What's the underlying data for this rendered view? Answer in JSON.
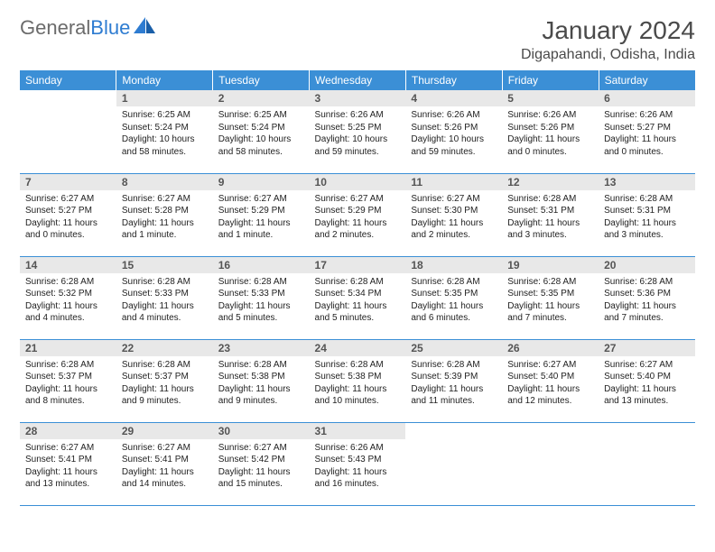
{
  "logo": {
    "text_gray": "General",
    "text_blue": "Blue"
  },
  "title": "January 2024",
  "location": "Digapahandi, Odisha, India",
  "colors": {
    "header_bg": "#3b8fd6",
    "header_fg": "#ffffff",
    "daynum_bg": "#e8e8e8",
    "daynum_fg": "#555555",
    "body_text": "#222222",
    "title_fg": "#4a4a4a",
    "logo_gray": "#6b6b6b",
    "logo_blue": "#2e7cd1",
    "row_border": "#3b8fd6"
  },
  "typography": {
    "title_fontsize": 28,
    "location_fontsize": 16,
    "header_fontsize": 12,
    "daynum_fontsize": 12,
    "cell_fontsize": 10
  },
  "weekdays": [
    "Sunday",
    "Monday",
    "Tuesday",
    "Wednesday",
    "Thursday",
    "Friday",
    "Saturday"
  ],
  "weeks": [
    [
      {
        "num": "",
        "sunrise": "",
        "sunset": "",
        "daylight": ""
      },
      {
        "num": "1",
        "sunrise": "Sunrise: 6:25 AM",
        "sunset": "Sunset: 5:24 PM",
        "daylight": "Daylight: 10 hours and 58 minutes."
      },
      {
        "num": "2",
        "sunrise": "Sunrise: 6:25 AM",
        "sunset": "Sunset: 5:24 PM",
        "daylight": "Daylight: 10 hours and 58 minutes."
      },
      {
        "num": "3",
        "sunrise": "Sunrise: 6:26 AM",
        "sunset": "Sunset: 5:25 PM",
        "daylight": "Daylight: 10 hours and 59 minutes."
      },
      {
        "num": "4",
        "sunrise": "Sunrise: 6:26 AM",
        "sunset": "Sunset: 5:26 PM",
        "daylight": "Daylight: 10 hours and 59 minutes."
      },
      {
        "num": "5",
        "sunrise": "Sunrise: 6:26 AM",
        "sunset": "Sunset: 5:26 PM",
        "daylight": "Daylight: 11 hours and 0 minutes."
      },
      {
        "num": "6",
        "sunrise": "Sunrise: 6:26 AM",
        "sunset": "Sunset: 5:27 PM",
        "daylight": "Daylight: 11 hours and 0 minutes."
      }
    ],
    [
      {
        "num": "7",
        "sunrise": "Sunrise: 6:27 AM",
        "sunset": "Sunset: 5:27 PM",
        "daylight": "Daylight: 11 hours and 0 minutes."
      },
      {
        "num": "8",
        "sunrise": "Sunrise: 6:27 AM",
        "sunset": "Sunset: 5:28 PM",
        "daylight": "Daylight: 11 hours and 1 minute."
      },
      {
        "num": "9",
        "sunrise": "Sunrise: 6:27 AM",
        "sunset": "Sunset: 5:29 PM",
        "daylight": "Daylight: 11 hours and 1 minute."
      },
      {
        "num": "10",
        "sunrise": "Sunrise: 6:27 AM",
        "sunset": "Sunset: 5:29 PM",
        "daylight": "Daylight: 11 hours and 2 minutes."
      },
      {
        "num": "11",
        "sunrise": "Sunrise: 6:27 AM",
        "sunset": "Sunset: 5:30 PM",
        "daylight": "Daylight: 11 hours and 2 minutes."
      },
      {
        "num": "12",
        "sunrise": "Sunrise: 6:28 AM",
        "sunset": "Sunset: 5:31 PM",
        "daylight": "Daylight: 11 hours and 3 minutes."
      },
      {
        "num": "13",
        "sunrise": "Sunrise: 6:28 AM",
        "sunset": "Sunset: 5:31 PM",
        "daylight": "Daylight: 11 hours and 3 minutes."
      }
    ],
    [
      {
        "num": "14",
        "sunrise": "Sunrise: 6:28 AM",
        "sunset": "Sunset: 5:32 PM",
        "daylight": "Daylight: 11 hours and 4 minutes."
      },
      {
        "num": "15",
        "sunrise": "Sunrise: 6:28 AM",
        "sunset": "Sunset: 5:33 PM",
        "daylight": "Daylight: 11 hours and 4 minutes."
      },
      {
        "num": "16",
        "sunrise": "Sunrise: 6:28 AM",
        "sunset": "Sunset: 5:33 PM",
        "daylight": "Daylight: 11 hours and 5 minutes."
      },
      {
        "num": "17",
        "sunrise": "Sunrise: 6:28 AM",
        "sunset": "Sunset: 5:34 PM",
        "daylight": "Daylight: 11 hours and 5 minutes."
      },
      {
        "num": "18",
        "sunrise": "Sunrise: 6:28 AM",
        "sunset": "Sunset: 5:35 PM",
        "daylight": "Daylight: 11 hours and 6 minutes."
      },
      {
        "num": "19",
        "sunrise": "Sunrise: 6:28 AM",
        "sunset": "Sunset: 5:35 PM",
        "daylight": "Daylight: 11 hours and 7 minutes."
      },
      {
        "num": "20",
        "sunrise": "Sunrise: 6:28 AM",
        "sunset": "Sunset: 5:36 PM",
        "daylight": "Daylight: 11 hours and 7 minutes."
      }
    ],
    [
      {
        "num": "21",
        "sunrise": "Sunrise: 6:28 AM",
        "sunset": "Sunset: 5:37 PM",
        "daylight": "Daylight: 11 hours and 8 minutes."
      },
      {
        "num": "22",
        "sunrise": "Sunrise: 6:28 AM",
        "sunset": "Sunset: 5:37 PM",
        "daylight": "Daylight: 11 hours and 9 minutes."
      },
      {
        "num": "23",
        "sunrise": "Sunrise: 6:28 AM",
        "sunset": "Sunset: 5:38 PM",
        "daylight": "Daylight: 11 hours and 9 minutes."
      },
      {
        "num": "24",
        "sunrise": "Sunrise: 6:28 AM",
        "sunset": "Sunset: 5:38 PM",
        "daylight": "Daylight: 11 hours and 10 minutes."
      },
      {
        "num": "25",
        "sunrise": "Sunrise: 6:28 AM",
        "sunset": "Sunset: 5:39 PM",
        "daylight": "Daylight: 11 hours and 11 minutes."
      },
      {
        "num": "26",
        "sunrise": "Sunrise: 6:27 AM",
        "sunset": "Sunset: 5:40 PM",
        "daylight": "Daylight: 11 hours and 12 minutes."
      },
      {
        "num": "27",
        "sunrise": "Sunrise: 6:27 AM",
        "sunset": "Sunset: 5:40 PM",
        "daylight": "Daylight: 11 hours and 13 minutes."
      }
    ],
    [
      {
        "num": "28",
        "sunrise": "Sunrise: 6:27 AM",
        "sunset": "Sunset: 5:41 PM",
        "daylight": "Daylight: 11 hours and 13 minutes."
      },
      {
        "num": "29",
        "sunrise": "Sunrise: 6:27 AM",
        "sunset": "Sunset: 5:41 PM",
        "daylight": "Daylight: 11 hours and 14 minutes."
      },
      {
        "num": "30",
        "sunrise": "Sunrise: 6:27 AM",
        "sunset": "Sunset: 5:42 PM",
        "daylight": "Daylight: 11 hours and 15 minutes."
      },
      {
        "num": "31",
        "sunrise": "Sunrise: 6:26 AM",
        "sunset": "Sunset: 5:43 PM",
        "daylight": "Daylight: 11 hours and 16 minutes."
      },
      {
        "num": "",
        "sunrise": "",
        "sunset": "",
        "daylight": ""
      },
      {
        "num": "",
        "sunrise": "",
        "sunset": "",
        "daylight": ""
      },
      {
        "num": "",
        "sunrise": "",
        "sunset": "",
        "daylight": ""
      }
    ]
  ]
}
